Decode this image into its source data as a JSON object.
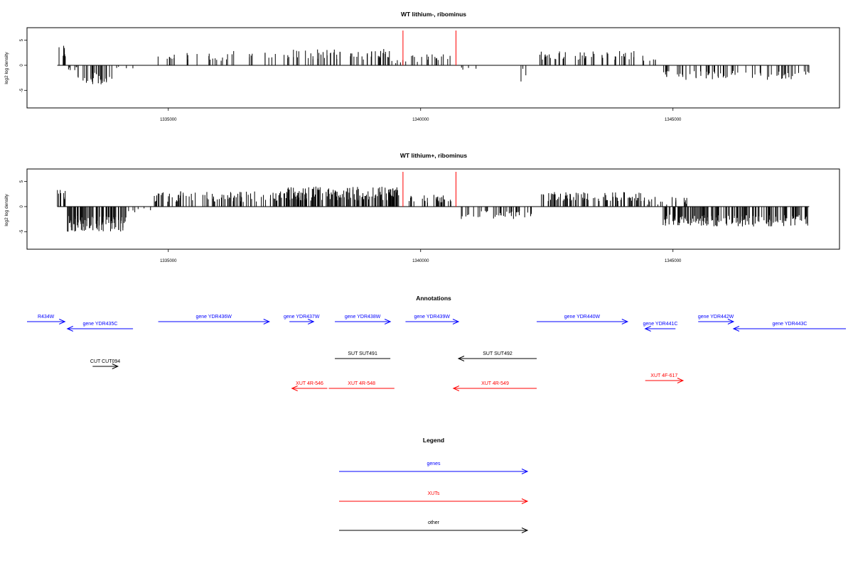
{
  "colors": {
    "gene": "#0000ff",
    "xut": "#ff0000",
    "other": "#000000",
    "marker": "#ff0000",
    "bar": "#000000"
  },
  "chart_data": [
    {
      "type": "bar",
      "title": "WT lithium-, ribominus",
      "ylabel": "log2 log density",
      "xticks": [
        {
          "value": 1335000,
          "label": "1335000"
        },
        {
          "value": 1340000,
          "label": "1340000"
        },
        {
          "value": 1345000,
          "label": "1345000"
        }
      ],
      "yticks": [
        {
          "value": -5,
          "label": "-5"
        },
        {
          "value": 0,
          "label": "0"
        },
        {
          "value": 5,
          "label": "5"
        }
      ],
      "xlim": [
        1332200,
        1348300
      ],
      "ylim": [
        -8.5,
        7.5
      ],
      "markers": [
        1339650,
        1340700
      ],
      "segments": [
        {
          "from": 1332800,
          "to": 1333000,
          "mean": 2.6,
          "spread": 1.3,
          "n": 8
        },
        {
          "from": 1333000,
          "to": 1333200,
          "mean": -0.8,
          "spread": 0.6,
          "n": 6
        },
        {
          "from": 1333200,
          "to": 1333900,
          "mean": -2.6,
          "spread": 1.2,
          "n": 32
        },
        {
          "from": 1333900,
          "to": 1334300,
          "mean": -0.6,
          "spread": 0.5,
          "n": 4
        },
        {
          "from": 1334700,
          "to": 1335100,
          "mean": 1.8,
          "spread": 0.6,
          "n": 6
        },
        {
          "from": 1335100,
          "to": 1337300,
          "mean": 1.9,
          "spread": 1.0,
          "n": 28
        },
        {
          "from": 1337300,
          "to": 1339400,
          "mean": 2.2,
          "spread": 1.1,
          "n": 58
        },
        {
          "from": 1339400,
          "to": 1339650,
          "mean": 0.8,
          "spread": 0.4,
          "n": 5
        },
        {
          "from": 1339700,
          "to": 1340600,
          "mean": 1.4,
          "spread": 0.8,
          "n": 18
        },
        {
          "from": 1340800,
          "to": 1341100,
          "mean": -0.6,
          "spread": 0.4,
          "n": 4
        },
        {
          "from": 1341900,
          "to": 1342100,
          "mean": -1.8,
          "spread": 1.6,
          "n": 3
        },
        {
          "from": 1342300,
          "to": 1344300,
          "mean": 2.0,
          "spread": 0.9,
          "n": 48
        },
        {
          "from": 1344400,
          "to": 1344700,
          "mean": 1.5,
          "spread": 0.8,
          "n": 6
        },
        {
          "from": 1344800,
          "to": 1347700,
          "mean": -2.0,
          "spread": 0.9,
          "n": 70
        }
      ]
    },
    {
      "type": "bar",
      "title": "WT lithium+, ribominus",
      "ylabel": "log2 log density",
      "xticks": [
        {
          "value": 1335000,
          "label": "1335000"
        },
        {
          "value": 1340000,
          "label": "1340000"
        },
        {
          "value": 1345000,
          "label": "1345000"
        }
      ],
      "yticks": [
        {
          "value": -5,
          "label": "-5"
        },
        {
          "value": 0,
          "label": "0"
        },
        {
          "value": 5,
          "label": "5"
        }
      ],
      "xlim": [
        1332200,
        1348300
      ],
      "ylim": [
        -8.5,
        7.5
      ],
      "markers": [
        1339650,
        1340700
      ],
      "segments": [
        {
          "from": 1332800,
          "to": 1333000,
          "mean": 2.2,
          "spread": 1.2,
          "n": 8
        },
        {
          "from": 1333000,
          "to": 1334200,
          "mean": -3.4,
          "spread": 1.6,
          "n": 95
        },
        {
          "from": 1334200,
          "to": 1334700,
          "mean": -0.7,
          "spread": 0.5,
          "n": 6
        },
        {
          "from": 1334700,
          "to": 1337300,
          "mean": 2.0,
          "spread": 1.1,
          "n": 90
        },
        {
          "from": 1337300,
          "to": 1339600,
          "mean": 2.6,
          "spread": 1.4,
          "n": 170
        },
        {
          "from": 1339700,
          "to": 1340600,
          "mean": 1.6,
          "spread": 0.8,
          "n": 30
        },
        {
          "from": 1340800,
          "to": 1342200,
          "mean": -1.6,
          "spread": 0.9,
          "n": 40
        },
        {
          "from": 1342300,
          "to": 1344400,
          "mean": 2.0,
          "spread": 0.9,
          "n": 90
        },
        {
          "from": 1344400,
          "to": 1345300,
          "mean": 1.2,
          "spread": 0.8,
          "n": 20
        },
        {
          "from": 1344800,
          "to": 1347700,
          "mean": -2.8,
          "spread": 1.2,
          "n": 170
        }
      ]
    }
  ],
  "annotations": {
    "title": "Annotations",
    "xlim": [
      1332200,
      1348300
    ],
    "features": [
      {
        "label": "R434W",
        "start": 1331700,
        "end": 1332950,
        "strand": "+",
        "kind": "gene",
        "row": 0
      },
      {
        "label": "gene YDR435C",
        "start": 1333000,
        "end": 1334300,
        "strand": "-",
        "kind": "gene",
        "row": 1
      },
      {
        "label": "gene YDR436W",
        "start": 1334800,
        "end": 1337000,
        "strand": "+",
        "kind": "gene",
        "row": 0
      },
      {
        "label": "gene YDR437W",
        "start": 1337400,
        "end": 1337880,
        "strand": "+",
        "kind": "gene",
        "row": 0
      },
      {
        "label": "gene YDR438W",
        "start": 1338300,
        "end": 1339400,
        "strand": "+",
        "kind": "gene",
        "row": 0
      },
      {
        "label": "gene YDR439W",
        "start": 1339700,
        "end": 1340750,
        "strand": "+",
        "kind": "gene",
        "row": 0
      },
      {
        "label": "gene YDR440W",
        "start": 1342300,
        "end": 1344100,
        "strand": "+",
        "kind": "gene",
        "row": 0
      },
      {
        "label": "gene YDR441C",
        "start": 1344450,
        "end": 1345050,
        "strand": "-",
        "kind": "gene",
        "row": 1
      },
      {
        "label": "gene YDR442W",
        "start": 1345500,
        "end": 1346200,
        "strand": "+",
        "kind": "gene",
        "row": 0
      },
      {
        "label": "gene YDR443C",
        "start": 1346200,
        "end": 1348800,
        "strand": "-",
        "kind": "gene",
        "row": 1
      },
      {
        "label": "SUT SUT491",
        "start": 1338300,
        "end": 1339400,
        "strand": "+",
        "kind": "other",
        "row": 2,
        "arrow": false
      },
      {
        "label": "SUT SUT492",
        "start": 1340750,
        "end": 1342300,
        "strand": "-",
        "kind": "other",
        "row": 2
      },
      {
        "label": "CUT CUT094",
        "start": 1333500,
        "end": 1334000,
        "strand": "+",
        "kind": "other",
        "row": 3
      },
      {
        "label": "XUT 4R-546",
        "start": 1337450,
        "end": 1338150,
        "strand": "-",
        "kind": "xut",
        "row": 4
      },
      {
        "label": "XUT 4R-548",
        "start": 1338180,
        "end": 1339480,
        "strand": "-",
        "kind": "xut",
        "row": 4,
        "arrow": false
      },
      {
        "label": "XUT 4R-549",
        "start": 1340650,
        "end": 1342300,
        "strand": "-",
        "kind": "xut",
        "row": 4
      },
      {
        "label": "XUT 4F-617",
        "start": 1344450,
        "end": 1345200,
        "strand": "+",
        "kind": "xut",
        "row": 5
      }
    ]
  },
  "legend": {
    "title": "Legend",
    "items": [
      {
        "label": "genes",
        "kind": "gene"
      },
      {
        "label": "XUTs",
        "kind": "xut"
      },
      {
        "label": "other",
        "kind": "other"
      }
    ]
  }
}
